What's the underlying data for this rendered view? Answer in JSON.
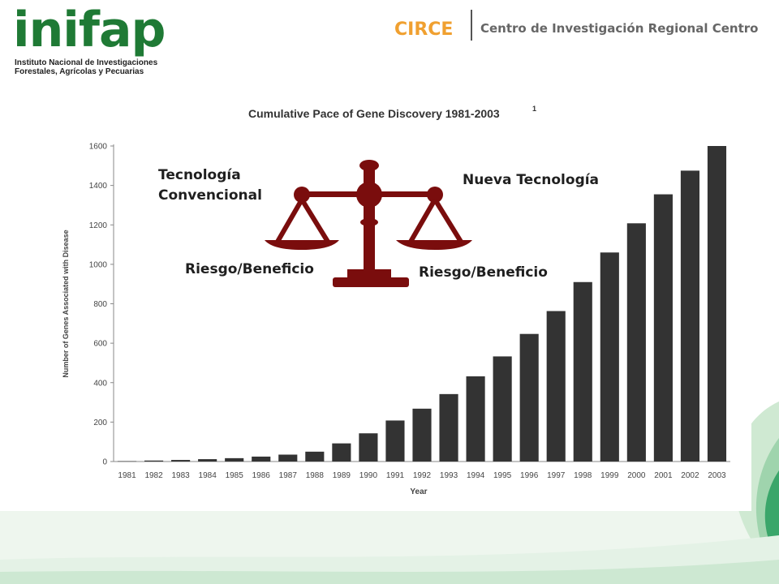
{
  "header": {
    "logo_text": "inifap",
    "logo_subtitle_line1": "Instituto Nacional de Investigaciones",
    "logo_subtitle_line2": "Forestales, Agrícolas y Pecuarias",
    "circe": "CIRCE",
    "centro": "Centro de Investigación Regional Centro"
  },
  "overlay": {
    "left_top_line1": "Tecnología",
    "left_top_line2": "Convencional",
    "right_top": "Nueva Tecnología",
    "left_bottom": "Riesgo/Beneficio",
    "right_bottom": "Riesgo/Beneficio",
    "scale_icon": "balance-scale-icon",
    "scale_color": "#7a0d0d"
  },
  "colors": {
    "logo_green": "#1f7a35",
    "circe_orange": "#f0a030",
    "bar_color": "#333333",
    "background_green": "#3aa66a"
  },
  "chart_data": {
    "type": "bar",
    "title": "Cumulative Pace of Gene Discovery 1981-2003",
    "title_superscript": "1",
    "xlabel": "Year",
    "ylabel": "Number of Genes Associated with Disease",
    "ylim": [
      0,
      1600
    ],
    "yticks": [
      0,
      200,
      400,
      600,
      800,
      1000,
      1200,
      1400,
      1600
    ],
    "grid": false,
    "categories": [
      "1981",
      "1982",
      "1983",
      "1984",
      "1985",
      "1986",
      "1987",
      "1988",
      "1989",
      "1990",
      "1991",
      "1992",
      "1993",
      "1994",
      "1995",
      "1996",
      "1997",
      "1998",
      "1999",
      "2000",
      "2001",
      "2002",
      "2003"
    ],
    "values": [
      2,
      5,
      8,
      12,
      17,
      25,
      35,
      50,
      92,
      143,
      208,
      268,
      342,
      432,
      533,
      647,
      763,
      910,
      1060,
      1208,
      1355,
      1475,
      1600
    ]
  }
}
